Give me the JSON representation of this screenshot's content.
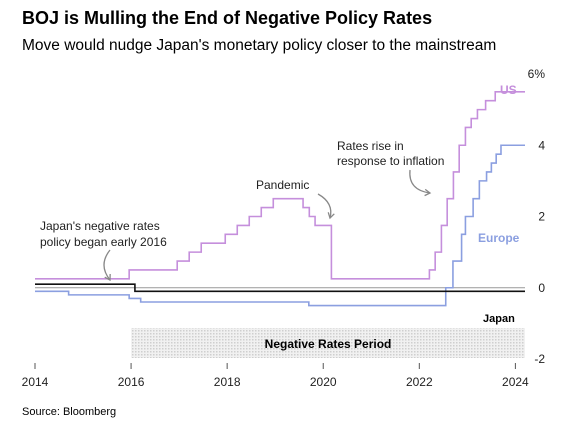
{
  "title": "BOJ is Mulling the End of Negative Policy Rates",
  "subtitle": "Move would nudge Japan's monetary policy closer to the mainstream",
  "source": "Source: Bloomberg",
  "colors": {
    "us": "#c58fdc",
    "europe": "#8b9fe0",
    "japan": "#111111",
    "zero_line": "#999999",
    "annotation_arrow": "#888888",
    "period_shade": "#e2e2e2"
  },
  "annotations": {
    "japan_negative": [
      "Japan's negative rates",
      "policy began early 2016"
    ],
    "pandemic": [
      "Pandemic"
    ],
    "inflation": [
      "Rates rise in",
      "response to inflation"
    ],
    "negative_period": "Negative Rates Period"
  },
  "chart_data": {
    "type": "line",
    "title": "BOJ is Mulling the End of Negative Policy Rates",
    "subtitle": "Move would nudge Japan's monetary policy closer to the mainstream",
    "xlabel": "",
    "ylabel": "",
    "xlim": [
      2014,
      2024.2
    ],
    "ylim": [
      -2,
      6
    ],
    "x_ticks": [
      2014,
      2016,
      2018,
      2020,
      2022,
      2024
    ],
    "x_tick_labels": [
      "2014",
      "2016",
      "2018",
      "2020",
      "2022",
      "2024"
    ],
    "y_ticks": [
      -2,
      0,
      2,
      4,
      6
    ],
    "y_tick_labels": [
      "-2",
      "0",
      "2",
      "4",
      "6%"
    ],
    "grid": false,
    "shaded_period": {
      "x": [
        2016.0,
        2024.2
      ],
      "label": "Negative Rates Period"
    },
    "series": [
      {
        "name": "US",
        "step": true,
        "points": [
          [
            2014.0,
            0.25
          ],
          [
            2015.96,
            0.5
          ],
          [
            2016.96,
            0.75
          ],
          [
            2017.21,
            1.0
          ],
          [
            2017.46,
            1.25
          ],
          [
            2017.96,
            1.5
          ],
          [
            2018.21,
            1.75
          ],
          [
            2018.46,
            2.0
          ],
          [
            2018.71,
            2.25
          ],
          [
            2018.96,
            2.5
          ],
          [
            2019.58,
            2.25
          ],
          [
            2019.71,
            2.0
          ],
          [
            2019.83,
            1.75
          ],
          [
            2020.17,
            0.25
          ],
          [
            2022.21,
            0.5
          ],
          [
            2022.33,
            1.0
          ],
          [
            2022.46,
            1.75
          ],
          [
            2022.58,
            2.5
          ],
          [
            2022.71,
            3.25
          ],
          [
            2022.83,
            4.0
          ],
          [
            2022.96,
            4.5
          ],
          [
            2023.08,
            4.75
          ],
          [
            2023.21,
            5.0
          ],
          [
            2023.38,
            5.25
          ],
          [
            2023.58,
            5.5
          ],
          [
            2024.2,
            5.5
          ]
        ]
      },
      {
        "name": "Europe",
        "step": true,
        "points": [
          [
            2014.0,
            -0.1
          ],
          [
            2014.7,
            -0.2
          ],
          [
            2015.96,
            -0.3
          ],
          [
            2016.2,
            -0.4
          ],
          [
            2019.7,
            -0.5
          ],
          [
            2022.55,
            0.0
          ],
          [
            2022.7,
            0.75
          ],
          [
            2022.88,
            1.5
          ],
          [
            2022.96,
            2.0
          ],
          [
            2023.12,
            2.5
          ],
          [
            2023.25,
            3.0
          ],
          [
            2023.4,
            3.25
          ],
          [
            2023.5,
            3.5
          ],
          [
            2023.6,
            3.75
          ],
          [
            2023.7,
            4.0
          ],
          [
            2024.2,
            4.0
          ]
        ]
      },
      {
        "name": "Japan",
        "step": true,
        "points": [
          [
            2014.0,
            0.1
          ],
          [
            2016.08,
            -0.1
          ],
          [
            2024.2,
            -0.1
          ]
        ]
      }
    ]
  }
}
